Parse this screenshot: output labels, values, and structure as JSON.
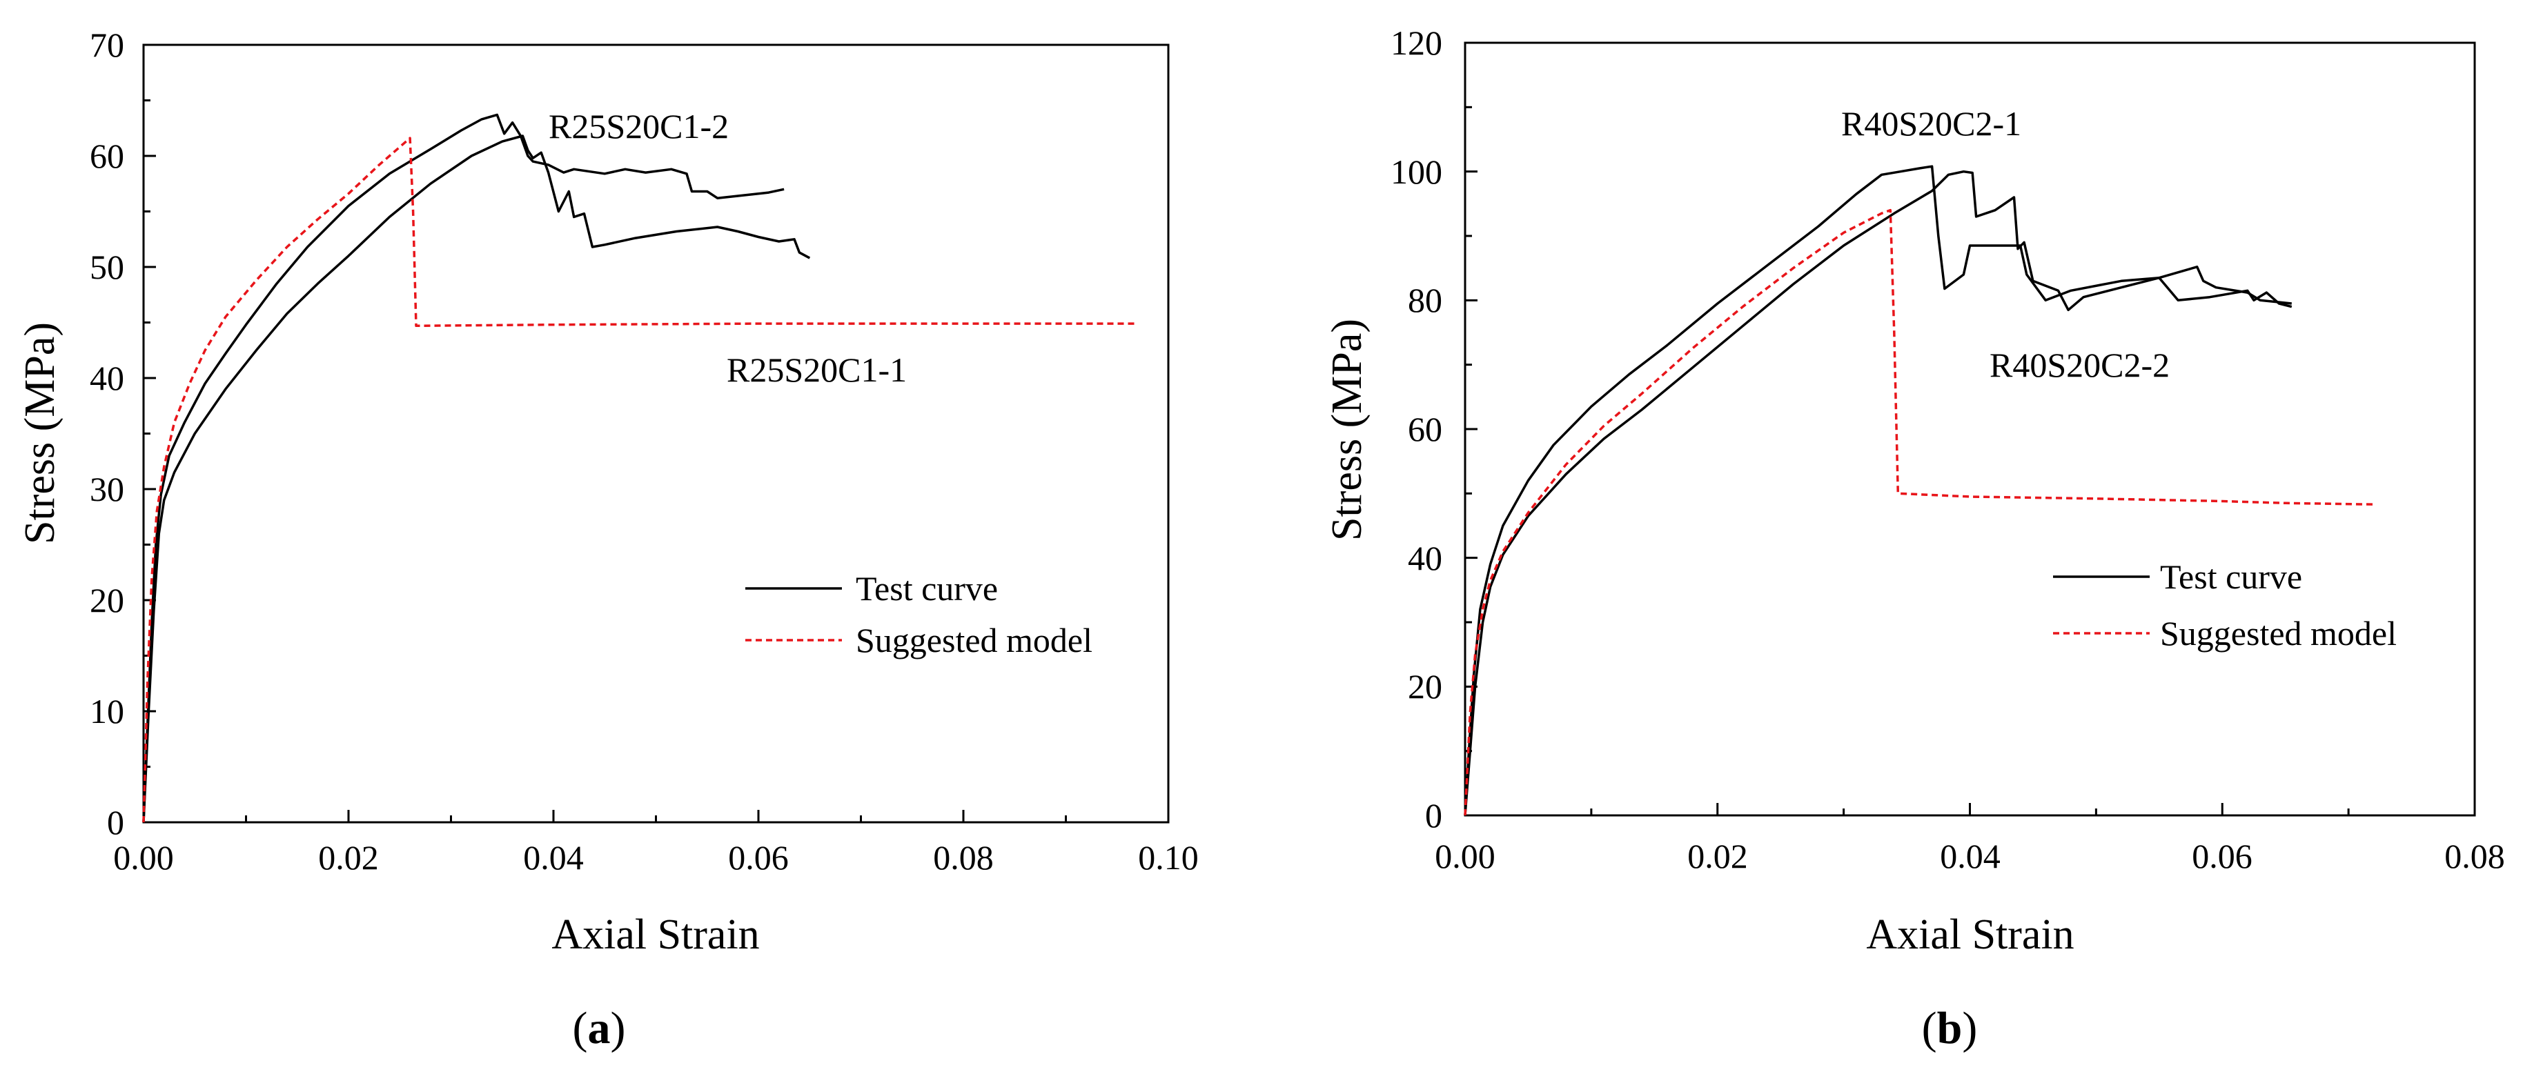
{
  "chart_data": [
    {
      "type": "line",
      "panel_label": "a",
      "xlabel": "Axial Strain",
      "ylabel": "Stress (MPa)",
      "xlim": [
        0,
        0.1
      ],
      "ylim": [
        0,
        70
      ],
      "xticks": [
        "0.00",
        "0.02",
        "0.04",
        "0.06",
        "0.08",
        "0.10"
      ],
      "yticks": [
        "0",
        "10",
        "20",
        "30",
        "40",
        "50",
        "60",
        "70"
      ],
      "grid": false,
      "legend_position": "lower-right",
      "legend": [
        {
          "label": "Test curve",
          "color": "#000000",
          "style": "solid"
        },
        {
          "label": "Suggested model",
          "color": "#e8151a",
          "style": "dashed"
        }
      ],
      "annotations": [
        {
          "text": "R25S20C1-2",
          "x": 0.0395,
          "y": 62.3
        },
        {
          "text": "R25S20C1-1",
          "x": 0.057,
          "y": 39.6
        }
      ],
      "series": [
        {
          "name": "R25S20C1-2 test",
          "kind": "test",
          "points": [
            [
              0,
              0
            ],
            [
              0.0004,
              9
            ],
            [
              0.0008,
              18
            ],
            [
              0.0012,
              25
            ],
            [
              0.0017,
              29.5
            ],
            [
              0.0025,
              33
            ],
            [
              0.004,
              36
            ],
            [
              0.006,
              39.5
            ],
            [
              0.008,
              42.2
            ],
            [
              0.01,
              44.8
            ],
            [
              0.013,
              48.5
            ],
            [
              0.016,
              51.8
            ],
            [
              0.02,
              55.5
            ],
            [
              0.024,
              58.4
            ],
            [
              0.028,
              60.6
            ],
            [
              0.031,
              62.3
            ],
            [
              0.033,
              63.3
            ],
            [
              0.0345,
              63.7
            ],
            [
              0.0352,
              62
            ],
            [
              0.036,
              63
            ],
            [
              0.0368,
              61.8
            ],
            [
              0.0375,
              60
            ],
            [
              0.038,
              59.5
            ],
            [
              0.0395,
              59.2
            ],
            [
              0.041,
              58.5
            ],
            [
              0.042,
              58.8
            ],
            [
              0.045,
              58.4
            ],
            [
              0.047,
              58.8
            ],
            [
              0.049,
              58.5
            ],
            [
              0.0515,
              58.8
            ],
            [
              0.053,
              58.4
            ],
            [
              0.0535,
              56.8
            ],
            [
              0.055,
              56.8
            ],
            [
              0.056,
              56.2
            ],
            [
              0.059,
              56.5
            ],
            [
              0.061,
              56.7
            ],
            [
              0.0625,
              57
            ]
          ]
        },
        {
          "name": "R25S20C1-1 test",
          "kind": "test",
          "points": [
            [
              0,
              0
            ],
            [
              0.0005,
              10
            ],
            [
              0.001,
              19
            ],
            [
              0.0015,
              26
            ],
            [
              0.002,
              29
            ],
            [
              0.003,
              31.5
            ],
            [
              0.005,
              35
            ],
            [
              0.008,
              39
            ],
            [
              0.011,
              42.5
            ],
            [
              0.014,
              45.8
            ],
            [
              0.017,
              48.5
            ],
            [
              0.02,
              51
            ],
            [
              0.024,
              54.5
            ],
            [
              0.028,
              57.5
            ],
            [
              0.032,
              60
            ],
            [
              0.035,
              61.3
            ],
            [
              0.037,
              61.8
            ],
            [
              0.0375,
              60.5
            ],
            [
              0.038,
              59.8
            ],
            [
              0.0388,
              60.3
            ],
            [
              0.0395,
              58.5
            ],
            [
              0.0405,
              55
            ],
            [
              0.0415,
              56.8
            ],
            [
              0.042,
              54.5
            ],
            [
              0.043,
              54.8
            ],
            [
              0.0438,
              51.8
            ],
            [
              0.045,
              52
            ],
            [
              0.048,
              52.6
            ],
            [
              0.052,
              53.2
            ],
            [
              0.056,
              53.6
            ],
            [
              0.058,
              53.2
            ],
            [
              0.06,
              52.7
            ],
            [
              0.062,
              52.3
            ],
            [
              0.0635,
              52.5
            ],
            [
              0.064,
              51.3
            ],
            [
              0.065,
              50.8
            ]
          ]
        },
        {
          "name": "Suggested model",
          "kind": "model",
          "points": [
            [
              0,
              0
            ],
            [
              0.0004,
              13
            ],
            [
              0.0008,
              22
            ],
            [
              0.0013,
              28
            ],
            [
              0.002,
              32
            ],
            [
              0.003,
              36
            ],
            [
              0.0045,
              39.5
            ],
            [
              0.006,
              42.5
            ],
            [
              0.008,
              45.5
            ],
            [
              0.011,
              48.8
            ],
            [
              0.014,
              51.8
            ],
            [
              0.017,
              54.3
            ],
            [
              0.02,
              56.6
            ],
            [
              0.023,
              59.2
            ],
            [
              0.025,
              60.8
            ],
            [
              0.026,
              61.6
            ],
            [
              0.0263,
              55
            ],
            [
              0.0266,
              44.7
            ],
            [
              0.04,
              44.8
            ],
            [
              0.06,
              44.9
            ],
            [
              0.08,
              44.9
            ],
            [
              0.097,
              44.9
            ]
          ]
        }
      ]
    },
    {
      "type": "line",
      "panel_label": "b",
      "xlabel": "Axial Strain",
      "ylabel": "Stress (MPa)",
      "xlim": [
        0,
        0.08
      ],
      "ylim": [
        0,
        120
      ],
      "xticks": [
        "0.00",
        "0.02",
        "0.04",
        "0.06",
        "0.08"
      ],
      "yticks": [
        "0",
        "20",
        "40",
        "60",
        "80",
        "100",
        "120"
      ],
      "grid": false,
      "legend_position": "lower-right",
      "legend": [
        {
          "label": "Test curve",
          "color": "#000000",
          "style": "solid"
        },
        {
          "label": "Suggested model",
          "color": "#e8151a",
          "style": "dashed"
        }
      ],
      "annotations": [
        {
          "text": "R40S20C2-1",
          "x": 0.0235,
          "y": 102.5
        },
        {
          "text": "R40S20C2-2",
          "x": 0.0475,
          "y": 66.5
        }
      ],
      "series": [
        {
          "name": "R40S20C2-1 test",
          "kind": "test",
          "points": [
            [
              0,
              0
            ],
            [
              0.0003,
              10
            ],
            [
              0.0007,
              22
            ],
            [
              0.0012,
              32
            ],
            [
              0.002,
              39
            ],
            [
              0.003,
              45
            ],
            [
              0.005,
              52
            ],
            [
              0.007,
              57.5
            ],
            [
              0.01,
              63.5
            ],
            [
              0.013,
              68.5
            ],
            [
              0.016,
              73
            ],
            [
              0.02,
              79.5
            ],
            [
              0.024,
              85.5
            ],
            [
              0.028,
              91.5
            ],
            [
              0.031,
              96.5
            ],
            [
              0.033,
              99.5
            ],
            [
              0.0345,
              100
            ],
            [
              0.036,
              100.5
            ],
            [
              0.037,
              100.8
            ],
            [
              0.0375,
              90
            ],
            [
              0.038,
              81.8
            ],
            [
              0.0395,
              84
            ],
            [
              0.04,
              88.5
            ],
            [
              0.044,
              88.5
            ],
            [
              0.0445,
              84
            ],
            [
              0.046,
              80
            ],
            [
              0.048,
              81.5
            ],
            [
              0.052,
              83
            ],
            [
              0.055,
              83.5
            ],
            [
              0.0565,
              80
            ],
            [
              0.059,
              80.5
            ],
            [
              0.062,
              81.5
            ],
            [
              0.0625,
              80
            ],
            [
              0.0635,
              81.2
            ],
            [
              0.0645,
              79.5
            ],
            [
              0.0655,
              79
            ]
          ]
        },
        {
          "name": "R40S20C2-2 test",
          "kind": "test",
          "points": [
            [
              0,
              0
            ],
            [
              0.0004,
              10
            ],
            [
              0.0008,
              20
            ],
            [
              0.0014,
              30
            ],
            [
              0.002,
              35.5
            ],
            [
              0.003,
              40.5
            ],
            [
              0.005,
              46.5
            ],
            [
              0.008,
              53
            ],
            [
              0.011,
              58.5
            ],
            [
              0.014,
              63
            ],
            [
              0.018,
              69.5
            ],
            [
              0.022,
              76
            ],
            [
              0.026,
              82.5
            ],
            [
              0.03,
              88.5
            ],
            [
              0.034,
              93.5
            ],
            [
              0.037,
              97
            ],
            [
              0.0383,
              99.5
            ],
            [
              0.0395,
              100
            ],
            [
              0.0402,
              99.8
            ],
            [
              0.0405,
              93
            ],
            [
              0.042,
              94
            ],
            [
              0.0435,
              96
            ],
            [
              0.0438,
              88
            ],
            [
              0.0443,
              89
            ],
            [
              0.045,
              83
            ],
            [
              0.047,
              81.5
            ],
            [
              0.0478,
              78.5
            ],
            [
              0.049,
              80.5
            ],
            [
              0.052,
              82
            ],
            [
              0.055,
              83.5
            ],
            [
              0.058,
              85.2
            ],
            [
              0.0585,
              83
            ],
            [
              0.0595,
              82
            ],
            [
              0.062,
              81.2
            ],
            [
              0.063,
              80
            ],
            [
              0.0655,
              79.5
            ]
          ]
        },
        {
          "name": "Suggested model",
          "kind": "model",
          "points": [
            [
              0,
              0
            ],
            [
              0.0004,
              16
            ],
            [
              0.0008,
              25
            ],
            [
              0.0014,
              32
            ],
            [
              0.002,
              36.5
            ],
            [
              0.003,
              41
            ],
            [
              0.005,
              47
            ],
            [
              0.008,
              54.5
            ],
            [
              0.011,
              60.5
            ],
            [
              0.014,
              65.5
            ],
            [
              0.018,
              72.5
            ],
            [
              0.022,
              79
            ],
            [
              0.026,
              85
            ],
            [
              0.03,
              90.5
            ],
            [
              0.033,
              93.5
            ],
            [
              0.0337,
              94
            ],
            [
              0.034,
              75
            ],
            [
              0.0343,
              50
            ],
            [
              0.04,
              49.5
            ],
            [
              0.05,
              49.2
            ],
            [
              0.06,
              48.8
            ],
            [
              0.065,
              48.5
            ],
            [
              0.072,
              48.3
            ]
          ]
        }
      ]
    }
  ]
}
